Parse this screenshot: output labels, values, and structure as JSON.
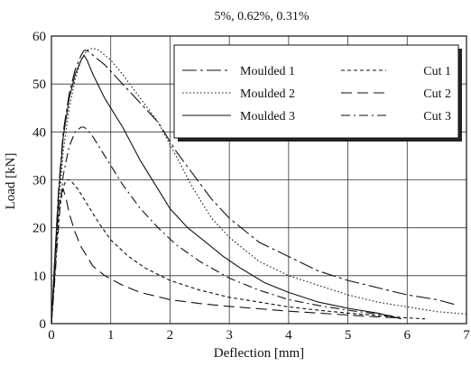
{
  "chart_data": {
    "type": "line",
    "title": "5%, 0.62%, 0.31%",
    "xlabel": "Deflection [mm]",
    "ylabel": "Load [kN]",
    "xlim": [
      0,
      7
    ],
    "ylim": [
      0,
      60
    ],
    "xticks": [
      0,
      1,
      2,
      3,
      4,
      5,
      6,
      7
    ],
    "yticks": [
      0,
      10,
      20,
      30,
      40,
      50,
      60
    ],
    "grid": true,
    "legend_position": "top-right",
    "series": [
      {
        "name": "Moulded 1",
        "dash": "long-dash-dot",
        "x": [
          0,
          0.05,
          0.12,
          0.2,
          0.3,
          0.4,
          0.5,
          0.55,
          0.6,
          0.7,
          0.9,
          1.2,
          1.5,
          1.8,
          2.1,
          2.4,
          2.7,
          3.0,
          3.5,
          4.0,
          4.5,
          5.0,
          5.5,
          6.0,
          6.5,
          6.8
        ],
        "y": [
          0,
          12,
          28,
          40,
          48,
          53,
          56,
          57,
          57,
          56,
          54,
          50,
          46,
          42,
          36,
          31,
          26,
          22,
          17,
          14,
          11,
          9,
          7.5,
          6,
          5,
          4
        ]
      },
      {
        "name": "Moulded 2",
        "dash": "dotted",
        "x": [
          0,
          0.05,
          0.12,
          0.2,
          0.3,
          0.4,
          0.5,
          0.6,
          0.7,
          0.8,
          1.0,
          1.2,
          1.5,
          1.8,
          2.1,
          2.4,
          2.7,
          3.0,
          3.5,
          4.0,
          4.5,
          5.0,
          5.5,
          6.0,
          6.5,
          7.0
        ],
        "y": [
          0,
          10,
          24,
          36,
          45,
          51,
          55,
          57,
          57.5,
          57,
          55,
          52,
          47,
          42,
          35,
          28,
          22,
          18,
          13,
          10,
          8,
          6,
          4.5,
          3.5,
          2.5,
          2
        ]
      },
      {
        "name": "Moulded 3",
        "dash": "solid",
        "x": [
          0,
          0.05,
          0.12,
          0.2,
          0.3,
          0.4,
          0.5,
          0.55,
          0.6,
          0.7,
          0.9,
          1.2,
          1.5,
          1.8,
          2.0,
          2.3,
          2.6,
          2.9,
          3.2,
          3.6,
          4.0,
          4.5,
          5.0,
          5.5,
          5.9
        ],
        "y": [
          0,
          12,
          27,
          39,
          47,
          52,
          55,
          56,
          55,
          52,
          47,
          41,
          34,
          28,
          24,
          20,
          17,
          14,
          11.5,
          8.5,
          6.5,
          4.5,
          3.2,
          2.2,
          1
        ]
      },
      {
        "name": "Cut 1",
        "dash": "short-dash",
        "x": [
          0,
          0.05,
          0.1,
          0.15,
          0.2,
          0.25,
          0.3,
          0.35,
          0.45,
          0.6,
          0.8,
          1.0,
          1.3,
          1.6,
          2.0,
          2.5,
          3.0,
          3.5,
          4.0,
          4.5,
          5.0,
          5.5,
          6.0,
          6.3
        ],
        "y": [
          0,
          9,
          19,
          25,
          28.5,
          30,
          30,
          29.5,
          28,
          25,
          21,
          17.5,
          14,
          11.5,
          9,
          7,
          5.5,
          4.5,
          3.5,
          2.8,
          2.2,
          1.7,
          1.2,
          1
        ]
      },
      {
        "name": "Cut 2",
        "dash": "long-dash",
        "x": [
          0,
          0.04,
          0.08,
          0.12,
          0.16,
          0.2,
          0.25,
          0.3,
          0.4,
          0.5,
          0.7,
          0.9,
          1.2,
          1.5,
          2.0,
          2.5,
          3.0,
          3.5,
          4.0,
          4.5,
          5.0,
          5.5,
          5.9
        ],
        "y": [
          0,
          9,
          18,
          24,
          27,
          28,
          26,
          23,
          19,
          16,
          12,
          10,
          8,
          6.5,
          5,
          4.2,
          3.6,
          3.1,
          2.6,
          2.2,
          1.8,
          1.4,
          1.2
        ]
      },
      {
        "name": "Cut 3",
        "dash": "dash-dot",
        "x": [
          0,
          0.05,
          0.1,
          0.15,
          0.2,
          0.3,
          0.4,
          0.5,
          0.55,
          0.6,
          0.7,
          0.9,
          1.2,
          1.5,
          1.8,
          2.1,
          2.5,
          3.0,
          3.5,
          4.0,
          4.5,
          5.0,
          5.5,
          5.8
        ],
        "y": [
          0,
          8,
          17,
          25,
          31,
          37,
          40,
          41,
          41,
          40.5,
          39,
          35,
          29,
          24,
          20,
          16.5,
          13,
          9.5,
          7,
          5,
          3.8,
          2.8,
          2,
          1.5
        ]
      }
    ]
  }
}
